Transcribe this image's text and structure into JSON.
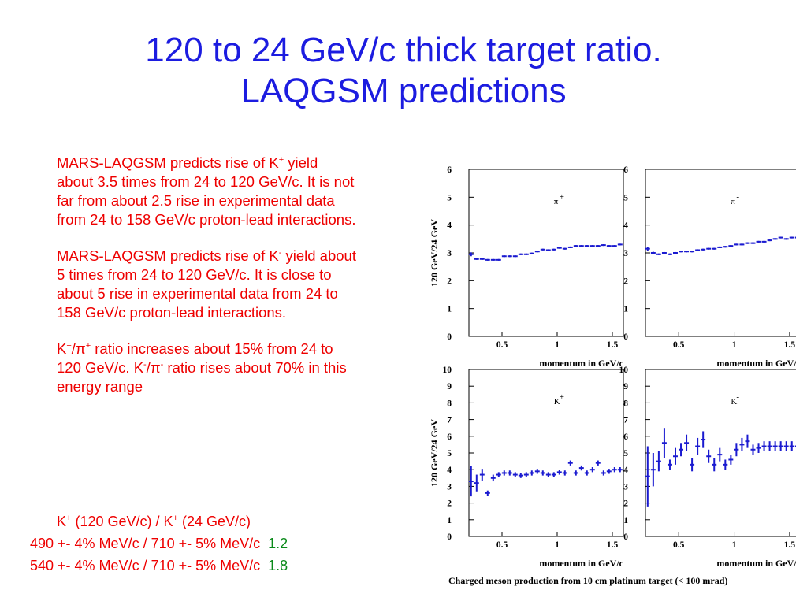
{
  "title": {
    "line1": "120 to 24 GeV/c thick target ratio.",
    "line2": "LAQGSM predictions"
  },
  "bullets": {
    "b1": {
      "pre": "MARS-LAQGSM predicts rise of  K",
      "sup": "+",
      "post": " yield about 3.5 times from 24 to 120 GeV/c. It is not far from about 2.5 rise in experimental data from 24 to 158 GeV/c proton-lead interactions."
    },
    "b2": {
      "pre": "MARS-LAQGSM predicts rise of  K",
      "sup": "-",
      "post": " yield about 5 times from 24 to 120 GeV/c. It is close to about 5 rise in experimental data from 24 to 158 GeV/c proton-lead interactions."
    },
    "b3": {
      "k": "K",
      "ksup": "+",
      "slash": "/π",
      "pisup": "+",
      "mid": " ratio increases about 15% from 24 to 120 GeV/c. K",
      "k2sup": "-",
      "slash2": "/π",
      "pi2sup": "-",
      "post": " ratio rises about 70% in this energy range"
    }
  },
  "ratio_eq": {
    "head": {
      "k1": "K",
      "s1": "+",
      "t1": " (120 GeV/c)  /  K",
      "s2": "+",
      "t2": " (24 GeV/c)"
    },
    "rows": [
      {
        "text": "490 +- 4% MeV/c    / 710 +-  5%  MeV/c",
        "value": "1.2"
      },
      {
        "text": "540 +- 4% MeV/c    / 710  +- 5%  MeV/c",
        "value": "1.8"
      }
    ]
  },
  "colors": {
    "title": "#1c1ce0",
    "text": "#ee0000",
    "value": "#0a8a1a",
    "points": "#1a1ad0"
  },
  "chart_data": {
    "caption": "Charged meson production from 10 cm platinum target (< 100 mrad)",
    "panels": [
      {
        "type": "scatter",
        "label": "π",
        "label_sup": "+",
        "xlabel": "momentum in GeV/c",
        "ylabel": "120 GeV/24 GeV",
        "xlim": [
          0.2,
          1.6
        ],
        "ylim": [
          0,
          6
        ],
        "yticks": [
          0,
          1,
          2,
          3,
          4,
          5,
          6
        ],
        "xticks": [
          0.5,
          1,
          1.5
        ],
        "xtick_labels": [
          "0.5",
          "1",
          "1.5"
        ],
        "x": [
          0.22,
          0.27,
          0.32,
          0.37,
          0.42,
          0.47,
          0.52,
          0.57,
          0.62,
          0.67,
          0.72,
          0.77,
          0.82,
          0.87,
          0.92,
          0.97,
          1.02,
          1.07,
          1.12,
          1.17,
          1.22,
          1.27,
          1.32,
          1.37,
          1.42,
          1.47,
          1.52,
          1.57
        ],
        "y": [
          2.95,
          2.78,
          2.78,
          2.75,
          2.75,
          2.75,
          2.88,
          2.88,
          2.88,
          2.95,
          2.95,
          2.98,
          3.05,
          3.12,
          3.1,
          3.12,
          3.18,
          3.15,
          3.2,
          3.25,
          3.25,
          3.25,
          3.25,
          3.25,
          3.28,
          3.25,
          3.25,
          3.3
        ],
        "yerr": [
          0.07,
          0.03,
          0.03,
          0.03,
          0.03,
          0.03,
          0.03,
          0.03,
          0.03,
          0.03,
          0.03,
          0.03,
          0.03,
          0.03,
          0.03,
          0.03,
          0.03,
          0.03,
          0.03,
          0.03,
          0.03,
          0.03,
          0.03,
          0.03,
          0.03,
          0.03,
          0.03,
          0.03
        ]
      },
      {
        "type": "scatter",
        "label": "π",
        "label_sup": "-",
        "xlabel": "momentum in GeV/c",
        "ylabel": "",
        "xlim": [
          0.2,
          1.6
        ],
        "ylim": [
          0,
          6
        ],
        "yticks": [
          0,
          1,
          2,
          3,
          4,
          5,
          6
        ],
        "xticks": [
          0.5,
          1,
          1.5
        ],
        "xtick_labels": [
          "0.5",
          "1",
          "1.5"
        ],
        "x": [
          0.22,
          0.27,
          0.32,
          0.37,
          0.42,
          0.47,
          0.52,
          0.57,
          0.62,
          0.67,
          0.72,
          0.77,
          0.82,
          0.87,
          0.92,
          0.97,
          1.02,
          1.07,
          1.12,
          1.17,
          1.22,
          1.27,
          1.32,
          1.37,
          1.42,
          1.47,
          1.52,
          1.57
        ],
        "y": [
          3.15,
          3.0,
          2.95,
          3.0,
          2.95,
          3.0,
          3.05,
          3.05,
          3.05,
          3.1,
          3.12,
          3.15,
          3.15,
          3.2,
          3.22,
          3.25,
          3.3,
          3.3,
          3.35,
          3.35,
          3.4,
          3.4,
          3.45,
          3.5,
          3.55,
          3.5,
          3.55,
          3.55
        ],
        "yerr": [
          0.07,
          0.04,
          0.03,
          0.03,
          0.03,
          0.03,
          0.03,
          0.03,
          0.03,
          0.03,
          0.03,
          0.03,
          0.03,
          0.03,
          0.03,
          0.03,
          0.03,
          0.03,
          0.03,
          0.03,
          0.03,
          0.03,
          0.03,
          0.03,
          0.03,
          0.03,
          0.03,
          0.03
        ]
      },
      {
        "type": "scatter",
        "label": "K",
        "label_sup": "+",
        "xlabel": "momentum in GeV/c",
        "ylabel": "120 GeV/24 GeV",
        "xlim": [
          0.2,
          1.6
        ],
        "ylim": [
          0,
          10
        ],
        "yticks": [
          0,
          1,
          2,
          3,
          4,
          5,
          6,
          7,
          8,
          9,
          10
        ],
        "xticks": [
          0.5,
          1,
          1.5
        ],
        "xtick_labels": [
          "0.5",
          "1",
          "1.5"
        ],
        "x": [
          0.22,
          0.27,
          0.32,
          0.37,
          0.42,
          0.47,
          0.52,
          0.57,
          0.62,
          0.67,
          0.72,
          0.77,
          0.82,
          0.87,
          0.92,
          0.97,
          1.02,
          1.07,
          1.12,
          1.17,
          1.22,
          1.27,
          1.32,
          1.37,
          1.42,
          1.47,
          1.52,
          1.57
        ],
        "y": [
          3.3,
          3.2,
          3.7,
          2.6,
          3.5,
          3.7,
          3.8,
          3.8,
          3.7,
          3.65,
          3.7,
          3.8,
          3.9,
          3.8,
          3.7,
          3.7,
          3.85,
          3.8,
          4.4,
          3.8,
          4.1,
          3.8,
          4.0,
          4.4,
          3.8,
          3.9,
          4.0,
          4.0
        ],
        "yerr": [
          0.9,
          0.5,
          0.35,
          0.15,
          0.2,
          0.15,
          0.15,
          0.15,
          0.15,
          0.15,
          0.15,
          0.15,
          0.15,
          0.15,
          0.15,
          0.15,
          0.15,
          0.15,
          0.15,
          0.15,
          0.15,
          0.15,
          0.15,
          0.15,
          0.15,
          0.15,
          0.15,
          0.15
        ]
      },
      {
        "type": "scatter",
        "label": "K",
        "label_sup": "-",
        "xlabel": "momentum in GeV/c",
        "ylabel": "",
        "xlim": [
          0.2,
          1.6
        ],
        "ylim": [
          0,
          10
        ],
        "yticks": [
          0,
          1,
          2,
          3,
          4,
          5,
          6,
          7,
          8,
          9,
          10
        ],
        "xticks": [
          0.5,
          1,
          1.5
        ],
        "xtick_labels": [
          "0.5",
          "1",
          "1.5"
        ],
        "x": [
          0.22,
          0.27,
          0.32,
          0.37,
          0.42,
          0.47,
          0.52,
          0.57,
          0.62,
          0.67,
          0.72,
          0.77,
          0.82,
          0.87,
          0.92,
          0.97,
          1.02,
          1.07,
          1.12,
          1.17,
          1.22,
          1.27,
          1.32,
          1.37,
          1.42,
          1.47,
          1.52,
          1.57
        ],
        "y": [
          3.6,
          4.0,
          4.5,
          5.6,
          4.3,
          4.8,
          5.2,
          5.6,
          4.3,
          5.4,
          5.8,
          4.8,
          4.3,
          4.9,
          4.3,
          4.6,
          5.2,
          5.5,
          5.7,
          5.2,
          5.3,
          5.4,
          5.4,
          5.4,
          5.4,
          5.4,
          5.4,
          5.4
        ],
        "yerr": [
          1.8,
          1.0,
          0.6,
          0.9,
          0.3,
          0.5,
          0.4,
          0.5,
          0.4,
          0.5,
          0.5,
          0.4,
          0.4,
          0.4,
          0.3,
          0.3,
          0.4,
          0.4,
          0.4,
          0.3,
          0.3,
          0.3,
          0.3,
          0.3,
          0.3,
          0.3,
          0.3,
          0.3
        ]
      }
    ]
  }
}
